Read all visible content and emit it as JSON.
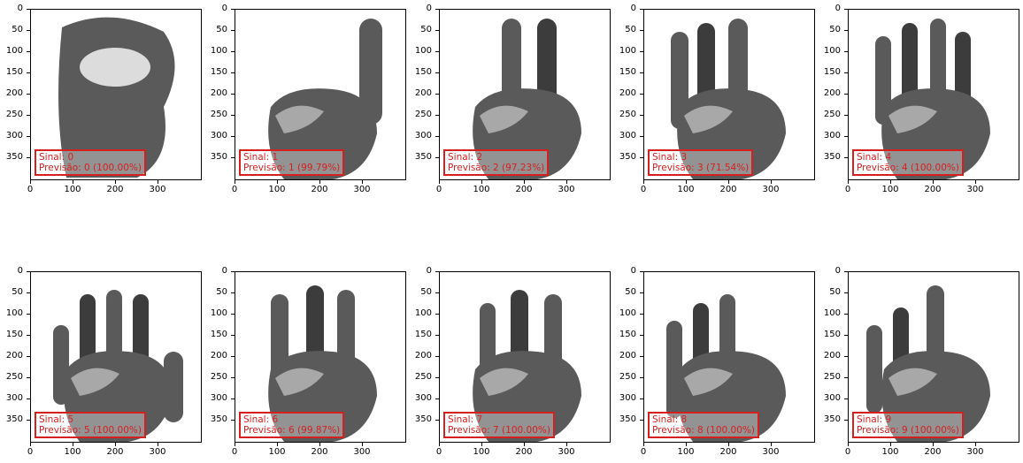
{
  "y_ticks": [
    "0",
    "50",
    "100",
    "150",
    "200",
    "250",
    "300",
    "350"
  ],
  "x_ticks": [
    "0",
    "100",
    "200",
    "300"
  ],
  "colors": {
    "annotation": "#d62020"
  },
  "panels": [
    {
      "sinal": "Sinal: 0",
      "previsao": "Previsão: 0 (100.00%)",
      "hand": "o-shape"
    },
    {
      "sinal": "Sinal: 1",
      "previsao": "Previsão: 1 (99.79%)",
      "hand": "one-finger"
    },
    {
      "sinal": "Sinal: 2",
      "previsao": "Previsão: 2 (97.23%)",
      "hand": "two-fingers"
    },
    {
      "sinal": "Sinal: 3",
      "previsao": "Previsão: 3 (71.54%)",
      "hand": "three-fingers"
    },
    {
      "sinal": "Sinal: 4",
      "previsao": "Previsão: 4 (100.00%)",
      "hand": "four-fingers"
    },
    {
      "sinal": "Sinal: 5",
      "previsao": "Previsão: 5 (100.00%)",
      "hand": "open-palm"
    },
    {
      "sinal": "Sinal: 6",
      "previsao": "Previsão: 6 (99.87%)",
      "hand": "three-fingers-up"
    },
    {
      "sinal": "Sinal: 7",
      "previsao": "Previsão: 7 (100.00%)",
      "hand": "three-fingers-spread"
    },
    {
      "sinal": "Sinal: 8",
      "previsao": "Previsão: 8 (100.00%)",
      "hand": "three-fingers-angled"
    },
    {
      "sinal": "Sinal: 9",
      "previsao": "Previsão: 9 (100.00%)",
      "hand": "four-fingers-curled"
    }
  ]
}
